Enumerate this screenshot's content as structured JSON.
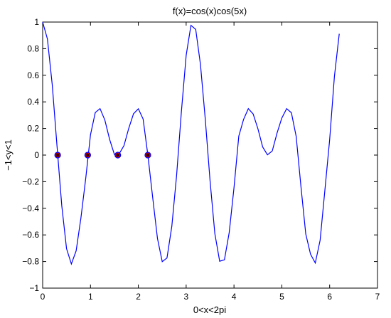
{
  "chart_data": {
    "type": "line",
    "title": "f(x)=cos(x)cos(5x)",
    "xlabel": "0<x<2pi",
    "ylabel": "−1<y<1",
    "xlim": [
      0,
      7
    ],
    "ylim": [
      -1,
      1
    ],
    "xticks": [
      "0",
      "1",
      "2",
      "3",
      "4",
      "5",
      "6",
      "7"
    ],
    "yticks": [
      "−1",
      "−0.8",
      "−0.6",
      "−0.4",
      "−0.2",
      "0",
      "0.2",
      "0.4",
      "0.6",
      "0.8",
      "1"
    ],
    "grid": false,
    "series": [
      {
        "color": "#0000ff",
        "x": [
          0,
          0.1,
          0.2,
          0.3,
          0.4,
          0.5,
          0.6,
          0.7,
          0.8,
          0.9,
          1.0,
          1.1,
          1.2,
          1.3,
          1.4,
          1.5,
          1.6,
          1.7,
          1.8,
          1.9,
          2.0,
          2.1,
          2.2,
          2.3,
          2.4,
          2.5,
          2.6,
          2.7,
          2.8,
          2.9,
          3.0,
          3.1,
          3.2,
          3.3,
          3.4,
          3.5,
          3.6,
          3.7,
          3.8,
          3.9,
          4.0,
          4.1,
          4.2,
          4.3,
          4.4,
          4.5,
          4.6,
          4.7,
          4.8,
          4.9,
          5.0,
          5.1,
          5.2,
          5.3,
          5.4,
          5.5,
          5.6,
          5.7,
          5.8,
          5.9,
          6.0,
          6.1,
          6.2
        ],
        "y": [
          1.0,
          0.873,
          0.528,
          0.068,
          -0.381,
          -0.703,
          -0.818,
          -0.72,
          -0.474,
          -0.175,
          0.153,
          0.32,
          0.349,
          0.263,
          0.118,
          0.005,
          0.01,
          0.071,
          0.201,
          0.31,
          0.348,
          0.271,
          0.0,
          -0.32,
          -0.627,
          -0.801,
          -0.773,
          -0.535,
          -0.154,
          0.323,
          0.751,
          0.975,
          0.945,
          0.68,
          0.267,
          -0.194,
          -0.59,
          -0.798,
          -0.787,
          -0.583,
          -0.248,
          0.143,
          0.268,
          0.349,
          0.309,
          0.198,
          0.061,
          0.002,
          0.031,
          0.165,
          0.278,
          0.349,
          0.318,
          0.141,
          -0.235,
          -0.593,
          -0.745,
          -0.811,
          -0.64,
          -0.264,
          0.115,
          0.591,
          0.912
        ]
      }
    ],
    "markers": {
      "x": [
        0.314,
        0.942,
        1.571,
        2.199
      ],
      "y": [
        0,
        0,
        0,
        0
      ],
      "fill": "#ff0000",
      "edge": "#0000ff"
    }
  }
}
